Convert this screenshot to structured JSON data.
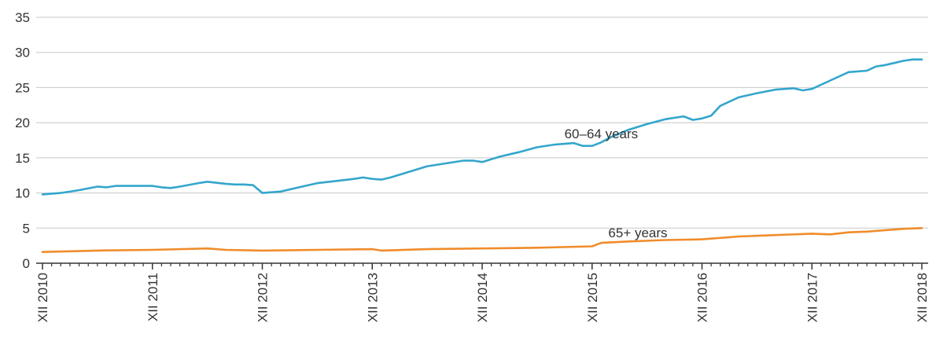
{
  "chart_data": {
    "type": "line",
    "title": "",
    "xlabel": "",
    "ylabel": "",
    "ylim": [
      0,
      35
    ],
    "yticks": [
      0,
      5,
      10,
      15,
      20,
      25,
      30,
      35
    ],
    "x_tick_labels": [
      "XII 2010",
      "XII 2011",
      "XII 2012",
      "XII 2013",
      "XII 2014",
      "XII 2015",
      "XII 2016",
      "XII 2017",
      "XII 2018"
    ],
    "x_tick_positions": [
      0,
      12,
      24,
      36,
      48,
      60,
      72,
      84,
      96
    ],
    "grid": true,
    "series": [
      {
        "name": "60–64 years",
        "color": "#33A6CC",
        "x": [
          0,
          2,
          4,
          6,
          7,
          8,
          10,
          11,
          12,
          13,
          14,
          15,
          17,
          18,
          20,
          21,
          22,
          23,
          24,
          26,
          28,
          30,
          32,
          34,
          35,
          36,
          37,
          38,
          40,
          42,
          44,
          46,
          47,
          48,
          50,
          52,
          54,
          56,
          58,
          59,
          60,
          61,
          62,
          64,
          66,
          68,
          70,
          71,
          72,
          73,
          74,
          76,
          78,
          80,
          82,
          83,
          84,
          86,
          88,
          90,
          91,
          92,
          94,
          95,
          96
        ],
        "values": [
          9.8,
          10.0,
          10.4,
          10.9,
          10.8,
          11.0,
          11.0,
          11.0,
          11.0,
          10.8,
          10.7,
          10.9,
          11.4,
          11.6,
          11.3,
          11.2,
          11.2,
          11.1,
          10.0,
          10.2,
          10.8,
          11.4,
          11.7,
          12.0,
          12.2,
          12.0,
          11.9,
          12.2,
          13.0,
          13.8,
          14.2,
          14.6,
          14.6,
          14.4,
          15.2,
          15.8,
          16.5,
          16.9,
          17.1,
          16.7,
          16.7,
          17.2,
          17.9,
          19.0,
          19.8,
          20.5,
          20.9,
          20.4,
          20.6,
          21.0,
          22.4,
          23.6,
          24.2,
          24.7,
          24.9,
          24.6,
          24.8,
          26.0,
          27.2,
          27.4,
          28.0,
          28.2,
          28.8,
          29.0,
          29.0
        ]
      },
      {
        "name": "65+ years",
        "color": "#F08C2A",
        "x": [
          0,
          6,
          12,
          18,
          20,
          24,
          30,
          36,
          37,
          42,
          48,
          54,
          60,
          61,
          64,
          68,
          72,
          76,
          80,
          84,
          86,
          88,
          90,
          92,
          94,
          96
        ],
        "values": [
          1.6,
          1.8,
          1.9,
          2.1,
          1.9,
          1.8,
          1.9,
          2.0,
          1.8,
          2.0,
          2.1,
          2.2,
          2.4,
          2.9,
          3.1,
          3.3,
          3.4,
          3.8,
          4.0,
          4.2,
          4.1,
          4.4,
          4.5,
          4.7,
          4.9,
          5.0
        ]
      }
    ],
    "annotations": [
      {
        "text": "60–64 years",
        "x": 61,
        "y": 17.8
      },
      {
        "text": "65+ years",
        "x": 65,
        "y": 3.7
      }
    ]
  }
}
